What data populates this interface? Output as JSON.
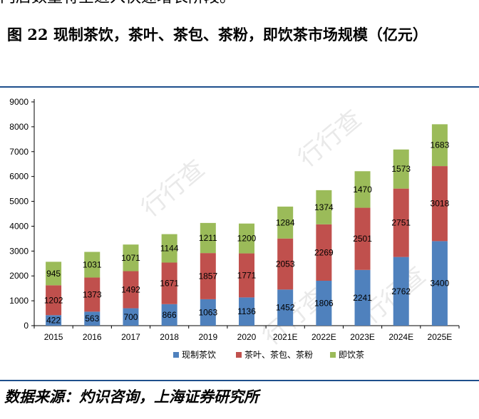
{
  "header_fragment": "门店数量将呈进入快速增长阶段。",
  "figure_title": "图 22 现制茶饮，茶叶、茶包、茶粉，即饮茶市场规模（亿元）",
  "source_note": "数据来源：灼识咨询，上海证券研究所",
  "watermark": "行行查",
  "chart_data": {
    "type": "bar",
    "stacked": true,
    "categories": [
      "2015",
      "2016",
      "2017",
      "2018",
      "2019",
      "2020",
      "2021E",
      "2022E",
      "2023E",
      "2024E",
      "2025E"
    ],
    "series": [
      {
        "name": "现制茶饮",
        "color": "#4f81bd",
        "values": [
          422,
          563,
          700,
          866,
          1063,
          1136,
          1452,
          1806,
          2241,
          2762,
          3400
        ]
      },
      {
        "name": "茶叶、茶包、茶粉",
        "color": "#c0504d",
        "values": [
          1202,
          1373,
          1492,
          1671,
          1857,
          1771,
          2053,
          2269,
          2501,
          2751,
          3018
        ]
      },
      {
        "name": "即饮茶",
        "color": "#9bbb59",
        "values": [
          945,
          1031,
          1071,
          1144,
          1211,
          1200,
          1284,
          1374,
          1470,
          1573,
          1683
        ]
      }
    ],
    "ylim": [
      0,
      9000
    ],
    "yticks": [
      0,
      1000,
      2000,
      3000,
      4000,
      5000,
      6000,
      7000,
      8000,
      9000
    ],
    "grid": false,
    "legend_position": "bottom"
  }
}
